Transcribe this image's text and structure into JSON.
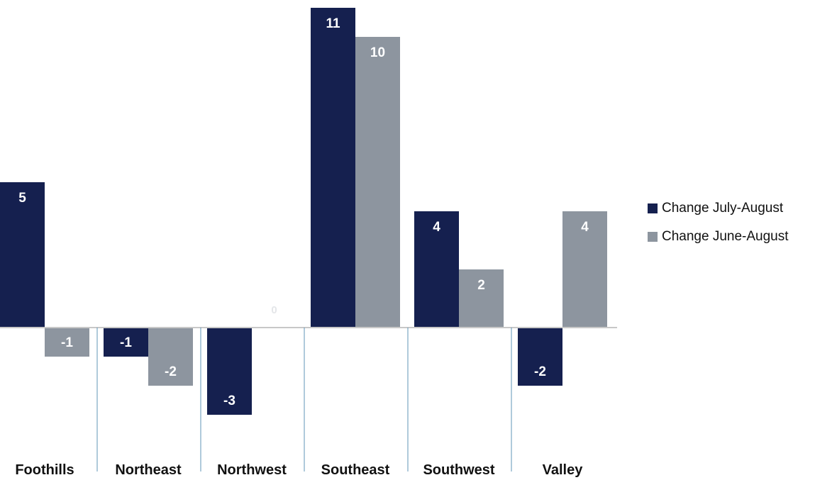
{
  "chart_data": {
    "type": "bar",
    "categories": [
      "Foothills",
      "Northeast",
      "Northwest",
      "Southeast",
      "Southwest",
      "Valley"
    ],
    "series": [
      {
        "name": "Change July-August",
        "color": "#15204f",
        "values": [
          5,
          -1,
          -3,
          11,
          4,
          -2
        ]
      },
      {
        "name": "Change June-August",
        "color": "#8d959f",
        "values": [
          -1,
          -2,
          0,
          10,
          2,
          4
        ]
      }
    ],
    "data_labels": true,
    "gridlines": false,
    "legend_position": "right"
  },
  "colors": {
    "axis": "#c8c8c8",
    "divider": "#5f95b7",
    "label_on_bar": "#ffffff",
    "zero_label": "#e4e6e9"
  }
}
